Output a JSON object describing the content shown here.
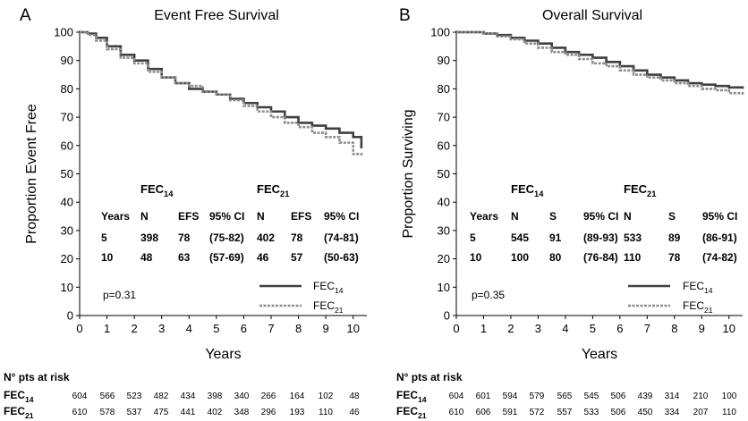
{
  "chart_data": [
    {
      "type": "line",
      "panel": "A",
      "title": "Event Free Survival",
      "xlabel": "Years",
      "ylabel": "Proportion Event Free",
      "xlim": [
        0,
        10.5
      ],
      "ylim": [
        0,
        100
      ],
      "xticks": [
        0,
        1,
        2,
        3,
        4,
        5,
        6,
        7,
        8,
        9,
        10
      ],
      "yticks": [
        0,
        10,
        20,
        30,
        40,
        50,
        60,
        70,
        80,
        90,
        100
      ],
      "grid": false,
      "series": [
        {
          "name": "FEC14",
          "color": "#404040",
          "style": "solid",
          "x": [
            0,
            0.3,
            0.6,
            1,
            1.5,
            2,
            2.5,
            3,
            3.5,
            4,
            4.5,
            5,
            5.5,
            6,
            6.5,
            7,
            7.5,
            8,
            8.5,
            9,
            9.5,
            10,
            10.3
          ],
          "y": [
            100,
            99.5,
            98,
            95,
            92,
            90,
            87,
            84,
            82,
            80,
            79,
            78,
            76.5,
            75,
            73.5,
            72,
            70,
            68,
            67,
            66,
            64.5,
            63,
            59
          ]
        },
        {
          "name": "FEC21",
          "color": "#8c8c8c",
          "style": "dotted",
          "x": [
            0,
            0.3,
            0.6,
            1,
            1.5,
            2,
            2.5,
            3,
            3.5,
            4,
            4.5,
            5,
            5.5,
            6,
            6.5,
            7,
            7.5,
            8,
            8.5,
            9,
            9.5,
            10,
            10.3
          ],
          "y": [
            100,
            99,
            97,
            94,
            91,
            89,
            86,
            84,
            82,
            81,
            79,
            78,
            76,
            74,
            72,
            70,
            68,
            66.5,
            64.5,
            63,
            61,
            57,
            56.5
          ]
        }
      ],
      "table": {
        "group1": "FEC",
        "group1_sub": "14",
        "group2": "FEC",
        "group2_sub": "21",
        "headers": [
          "Years",
          "N",
          "EFS",
          "95% CI",
          "N",
          "EFS",
          "95% CI"
        ],
        "rows": [
          [
            "5",
            "398",
            "78",
            "(75-82)",
            "402",
            "78",
            "(74-81)"
          ],
          [
            "10",
            "48",
            "63",
            "(57-69)",
            "46",
            "57",
            "(50-63)"
          ]
        ]
      },
      "pvalue": "p=0.31",
      "legend": [
        {
          "label": "FEC",
          "sub": "14"
        },
        {
          "label": "FEC",
          "sub": "21"
        }
      ],
      "risk": {
        "title": "N° pts at risk",
        "rows": [
          {
            "label": "FEC",
            "sub": "14",
            "values": [
              "604",
              "566",
              "523",
              "482",
              "434",
              "398",
              "340",
              "266",
              "164",
              "102",
              "48"
            ]
          },
          {
            "label": "FEC",
            "sub": "21",
            "values": [
              "610",
              "578",
              "537",
              "475",
              "441",
              "402",
              "348",
              "296",
              "193",
              "110",
              "46"
            ]
          }
        ]
      }
    },
    {
      "type": "line",
      "panel": "B",
      "title": "Overall Survival",
      "xlabel": "Years",
      "ylabel": "Proportion Surviving",
      "xlim": [
        0,
        10.5
      ],
      "ylim": [
        0,
        100
      ],
      "xticks": [
        0,
        1,
        2,
        3,
        4,
        5,
        6,
        7,
        8,
        9,
        10
      ],
      "yticks": [
        0,
        10,
        20,
        30,
        40,
        50,
        60,
        70,
        80,
        90,
        100
      ],
      "grid": false,
      "series": [
        {
          "name": "FEC14",
          "color": "#404040",
          "style": "solid",
          "x": [
            0,
            0.5,
            1,
            1.5,
            2,
            2.5,
            3,
            3.5,
            4,
            4.5,
            5,
            5.5,
            6,
            6.5,
            7,
            7.5,
            8,
            8.5,
            9,
            9.5,
            10,
            10.5
          ],
          "y": [
            100,
            100,
            99.5,
            99,
            98,
            97,
            96,
            94.5,
            93,
            92,
            91,
            89.5,
            88,
            86.5,
            85,
            84,
            83,
            82,
            81.5,
            81,
            80.5,
            80
          ]
        },
        {
          "name": "FEC21",
          "color": "#8c8c8c",
          "style": "dotted",
          "x": [
            0,
            0.5,
            1,
            1.5,
            2,
            2.5,
            3,
            3.5,
            4,
            4.5,
            5,
            5.5,
            6,
            6.5,
            7,
            7.5,
            8,
            8.5,
            9,
            9.5,
            10,
            10.5
          ],
          "y": [
            100,
            100,
            99.5,
            98.5,
            97.5,
            96,
            94.5,
            93,
            92,
            90.5,
            89,
            88,
            86.5,
            85,
            84,
            83,
            82,
            81,
            80,
            79.5,
            78.5,
            78
          ]
        }
      ],
      "table": {
        "group1": "FEC",
        "group1_sub": "14",
        "group2": "FEC",
        "group2_sub": "21",
        "headers": [
          "Years",
          "N",
          "S",
          "95% CI",
          "N",
          "S",
          "95% CI"
        ],
        "rows": [
          [
            "5",
            "545",
            "91",
            "(89-93)",
            "533",
            "89",
            "(86-91)"
          ],
          [
            "10",
            "100",
            "80",
            "(76-84)",
            "110",
            "78",
            "(74-82)"
          ]
        ]
      },
      "pvalue": "p=0.35",
      "legend": [
        {
          "label": "FEC",
          "sub": "14"
        },
        {
          "label": "FEC",
          "sub": "21"
        }
      ],
      "risk": {
        "title": "N° pts at risk",
        "rows": [
          {
            "label": "FEC",
            "sub": "14",
            "values": [
              "604",
              "601",
              "594",
              "579",
              "565",
              "545",
              "506",
              "439",
              "314",
              "210",
              "100"
            ]
          },
          {
            "label": "FEC",
            "sub": "21",
            "values": [
              "610",
              "606",
              "591",
              "572",
              "557",
              "533",
              "506",
              "450",
              "334",
              "207",
              "110"
            ]
          }
        ]
      }
    }
  ]
}
